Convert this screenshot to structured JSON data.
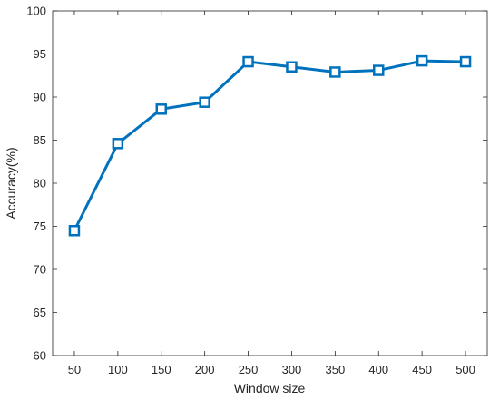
{
  "chart_data": {
    "type": "line",
    "x_label": "Window size",
    "y_label": "Accuracy(%)",
    "x": [
      50,
      100,
      150,
      200,
      250,
      300,
      350,
      400,
      450,
      500
    ],
    "series": [
      {
        "color": "#0072bd",
        "values": [
          74.5,
          84.6,
          88.6,
          89.4,
          94.1,
          93.5,
          92.9,
          93.1,
          94.2,
          94.1
        ]
      }
    ],
    "xlim": [
      25,
      525
    ],
    "xticks": [
      50,
      100,
      150,
      200,
      250,
      300,
      350,
      400,
      450,
      500
    ],
    "ylim": [
      60,
      100
    ],
    "yticks": [
      60,
      65,
      70,
      75,
      80,
      85,
      90,
      95,
      100
    ],
    "marker": "square",
    "grid": false
  }
}
